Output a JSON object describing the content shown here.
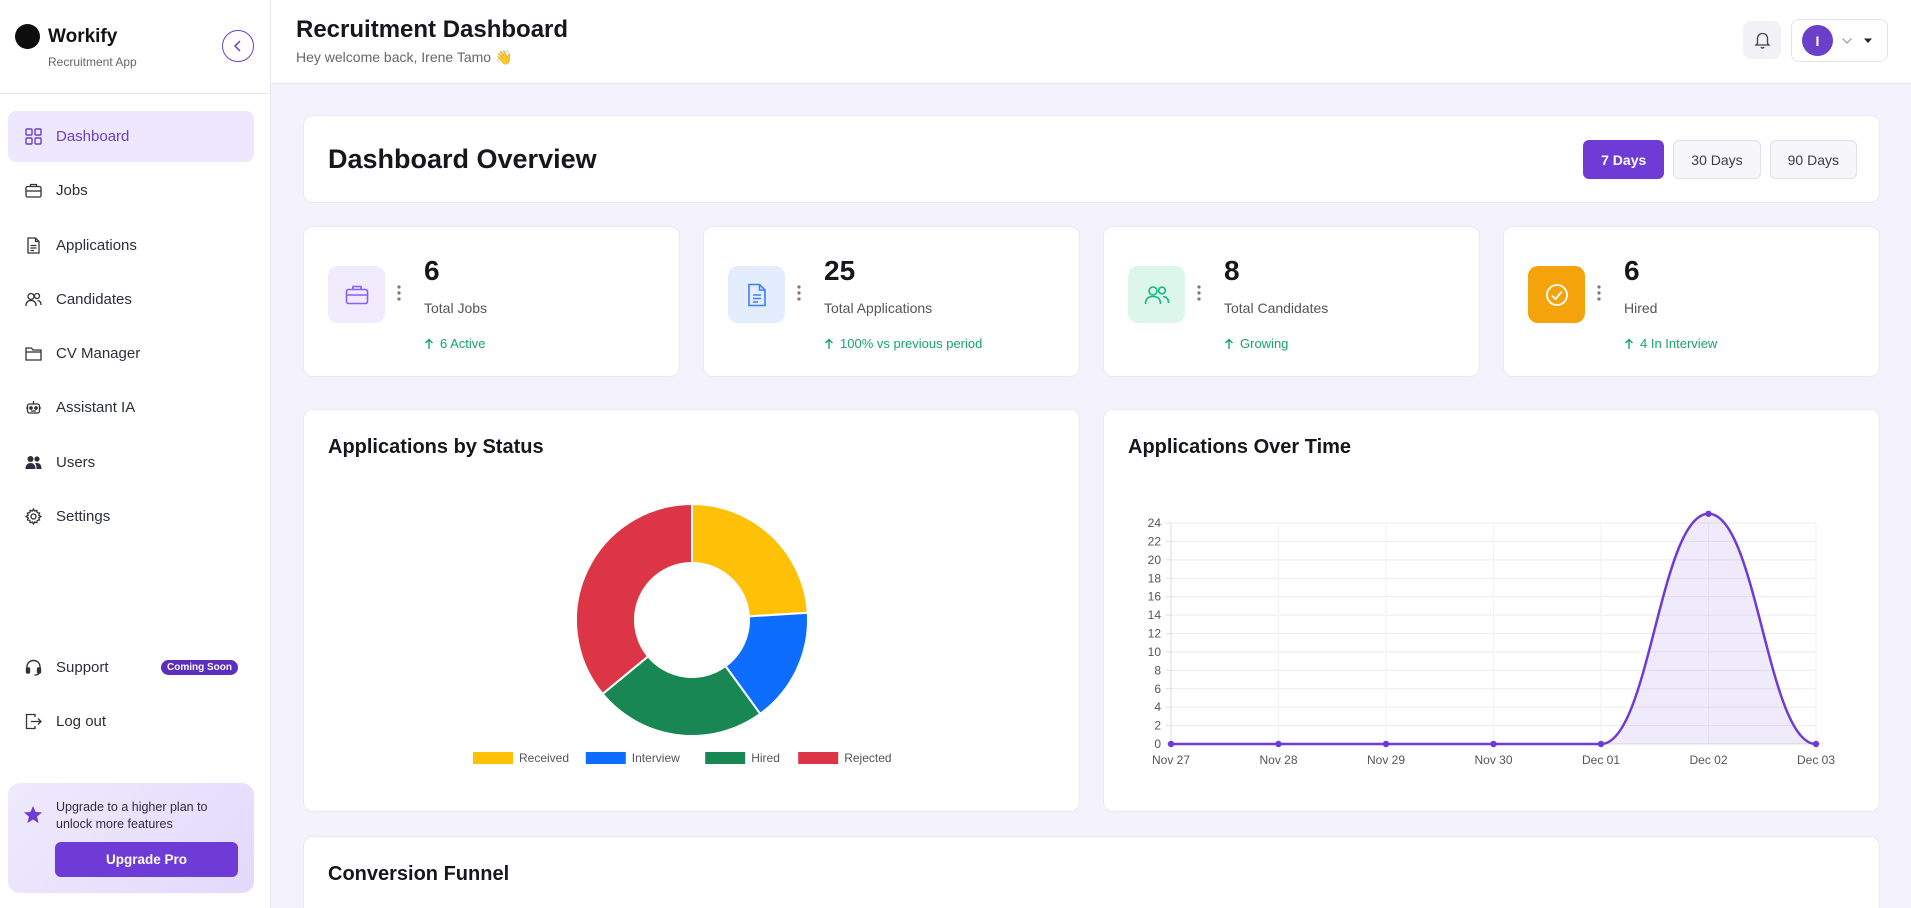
{
  "brand": {
    "name": "Workify",
    "subtitle": "Recruitment App"
  },
  "sidebar": {
    "items": [
      {
        "label": "Dashboard",
        "icon": "grid-icon",
        "active": true
      },
      {
        "label": "Jobs",
        "icon": "briefcase-icon"
      },
      {
        "label": "Applications",
        "icon": "document-icon"
      },
      {
        "label": "Candidates",
        "icon": "people-icon"
      },
      {
        "label": "CV Manager",
        "icon": "folder-icon"
      },
      {
        "label": "Assistant IA",
        "icon": "robot-icon"
      },
      {
        "label": "Users",
        "icon": "users-icon"
      },
      {
        "label": "Settings",
        "icon": "gear-icon"
      }
    ],
    "bottom": [
      {
        "label": "Support",
        "icon": "headset-icon",
        "badge": "Coming Soon"
      },
      {
        "label": "Log out",
        "icon": "logout-icon"
      }
    ],
    "upgrade": {
      "text": "Upgrade to a higher plan to unlock more features",
      "button": "Upgrade Pro"
    }
  },
  "header": {
    "title": "Recruitment Dashboard",
    "welcome": "Hey welcome back, Irene Tamo 👋",
    "avatar_initial": "I"
  },
  "overview": {
    "title": "Dashboard Overview",
    "ranges": [
      "7 Days",
      "30 Days",
      "90 Days"
    ],
    "active_range": "7 Days"
  },
  "stats": [
    {
      "value": "6",
      "label": "Total Jobs",
      "trend": "6 Active",
      "icon": "briefcase-icon",
      "bg": "#f0ebfd",
      "fg": "#8b5cf6"
    },
    {
      "value": "25",
      "label": "Total Applications",
      "trend": "100% vs previous period",
      "icon": "document-icon",
      "bg": "#e3edfd",
      "fg": "#3b82f6"
    },
    {
      "value": "8",
      "label": "Total Candidates",
      "trend": "Growing",
      "icon": "people-icon",
      "bg": "#dcf7ea",
      "fg": "#10b981"
    },
    {
      "value": "6",
      "label": "Hired",
      "trend": "4 In Interview",
      "icon": "check-circle-icon",
      "bg": "#f5a30b",
      "fg": "#ffffff"
    }
  ],
  "colors": {
    "accent": "#6e3bd6",
    "trend": "#17a36b"
  },
  "charts": {
    "status_title": "Applications by Status",
    "time_title": "Applications Over Time",
    "funnel_title": "Conversion Funnel"
  },
  "chart_data": [
    {
      "type": "pie",
      "variant": "doughnut",
      "title": "Applications by Status",
      "categories": [
        "Received",
        "Interview",
        "Hired",
        "Rejected"
      ],
      "values": [
        6,
        4,
        6,
        9
      ],
      "colors": [
        "#ffc107",
        "#0d6efd",
        "#198754",
        "#dc3545"
      ],
      "legend": "bottom"
    },
    {
      "type": "area",
      "title": "Applications Over Time",
      "categories": [
        "Nov 27",
        "Nov 28",
        "Nov 29",
        "Nov 30",
        "Dec 01",
        "Dec 02",
        "Dec 03"
      ],
      "series": [
        {
          "values": [
            0,
            0,
            0,
            0,
            0,
            25,
            0
          ]
        }
      ],
      "ylim": [
        0,
        24
      ],
      "yticks": [
        0,
        2,
        4,
        6,
        8,
        10,
        12,
        14,
        16,
        18,
        20,
        22,
        24
      ],
      "grid": true,
      "color": "#6e3bd6"
    }
  ]
}
